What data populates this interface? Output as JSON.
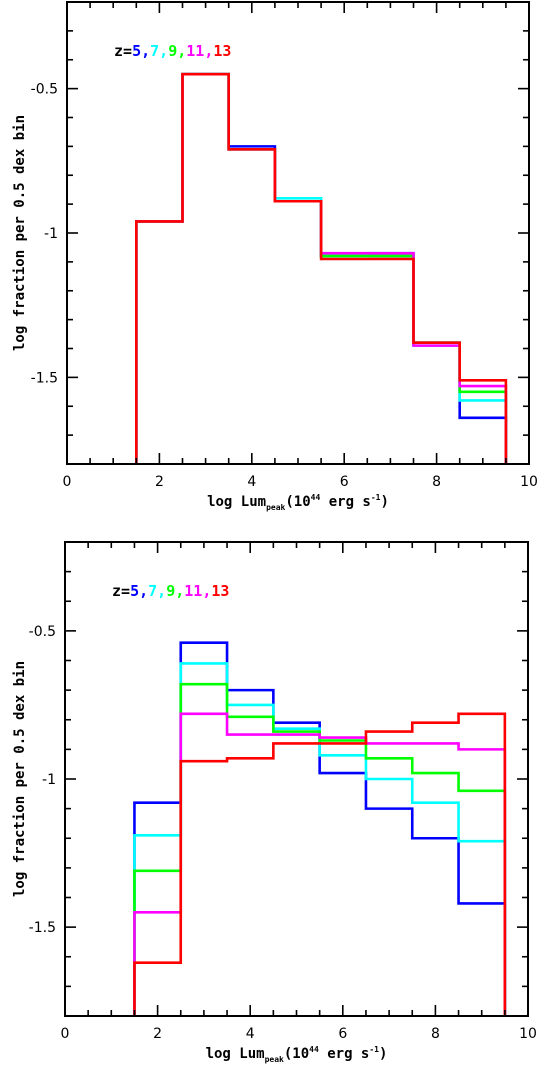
{
  "chart_data": [
    {
      "type": "line",
      "step": "histogram",
      "title": "",
      "xlabel_main": "log Lum",
      "xlabel_sub": "peak",
      "xlabel_paren": "(10",
      "xlabel_exp": "44",
      "xlabel_unit": " erg s",
      "xlabel_unit_exp": "-1",
      "xlabel_close": ")",
      "ylabel": "log fraction per 0.5 dex bin",
      "xlim": [
        0,
        10
      ],
      "ylim": [
        -1.8,
        -0.2
      ],
      "xticks": [
        0,
        2,
        4,
        6,
        8,
        10
      ],
      "xtick_labels": [
        "0",
        "2",
        "4",
        "6",
        "8",
        "10"
      ],
      "yticks": [
        -0.5,
        -1,
        -1.5
      ],
      "ytick_labels": [
        "-0.5",
        "-1",
        "-1.5"
      ],
      "legend_prefix": "z=",
      "legend": [
        "5",
        "7",
        "9",
        "11",
        "13"
      ],
      "legend_separators": [
        ",",
        ",",
        ",",
        ","
      ],
      "bin_edges": [
        1.5,
        2.5,
        3.5,
        4.5,
        5.5,
        6.5,
        7.5,
        8.5,
        9.5
      ],
      "series": [
        {
          "name": "5",
          "color": "#0000ff",
          "values": [
            -0.96,
            -0.45,
            -0.7,
            -0.89,
            -1.08,
            -1.08,
            -1.38,
            -1.64
          ]
        },
        {
          "name": "7",
          "color": "#00ffff",
          "values": [
            -0.96,
            -0.45,
            -0.71,
            -0.88,
            -1.08,
            -1.07,
            -1.39,
            -1.58
          ]
        },
        {
          "name": "9",
          "color": "#00ff00",
          "values": [
            -0.96,
            -0.45,
            -0.71,
            -0.89,
            -1.08,
            -1.08,
            -1.38,
            -1.55
          ]
        },
        {
          "name": "11",
          "color": "#ff00ff",
          "values": [
            -0.96,
            -0.45,
            -0.71,
            -0.89,
            -1.07,
            -1.07,
            -1.39,
            -1.53
          ]
        },
        {
          "name": "13",
          "color": "#ff0000",
          "values": [
            -0.96,
            -0.45,
            -0.71,
            -0.89,
            -1.09,
            -1.09,
            -1.38,
            -1.51
          ]
        }
      ]
    },
    {
      "type": "line",
      "step": "histogram",
      "title": "",
      "xlabel_main": "log Lum",
      "xlabel_sub": "peak",
      "xlabel_paren": "(10",
      "xlabel_exp": "44",
      "xlabel_unit": " erg s",
      "xlabel_unit_exp": "-1",
      "xlabel_close": ")",
      "ylabel": "log fraction per 0.5 dex bin",
      "xlim": [
        0,
        10
      ],
      "ylim": [
        -1.8,
        -0.2
      ],
      "xticks": [
        0,
        2,
        4,
        6,
        8,
        10
      ],
      "xtick_labels": [
        "0",
        "2",
        "4",
        "6",
        "8",
        "10"
      ],
      "yticks": [
        -0.5,
        -1,
        -1.5
      ],
      "ytick_labels": [
        "-0.5",
        "-1",
        "-1.5"
      ],
      "legend_prefix": "z=",
      "legend": [
        "5",
        "7",
        "9",
        "11",
        "13"
      ],
      "legend_separators": [
        ",",
        ",",
        ",",
        ","
      ],
      "bin_edges": [
        1.5,
        2.5,
        3.5,
        4.5,
        5.5,
        6.5,
        7.5,
        8.5,
        9.5
      ],
      "series": [
        {
          "name": "5",
          "color": "#0000ff",
          "values": [
            -1.08,
            -0.54,
            -0.7,
            -0.81,
            -0.98,
            -1.1,
            -1.2,
            -1.42
          ]
        },
        {
          "name": "7",
          "color": "#00ffff",
          "values": [
            -1.19,
            -0.61,
            -0.75,
            -0.83,
            -0.92,
            -1.0,
            -1.08,
            -1.21
          ]
        },
        {
          "name": "9",
          "color": "#00ff00",
          "values": [
            -1.31,
            -0.68,
            -0.79,
            -0.84,
            -0.87,
            -0.93,
            -0.98,
            -1.04
          ]
        },
        {
          "name": "11",
          "color": "#ff00ff",
          "values": [
            -1.45,
            -0.78,
            -0.85,
            -0.85,
            -0.86,
            -0.88,
            -0.88,
            -0.9
          ]
        },
        {
          "name": "13",
          "color": "#ff0000",
          "values": [
            -1.62,
            -0.94,
            -0.93,
            -0.88,
            -0.88,
            -0.84,
            -0.81,
            -0.78
          ]
        }
      ]
    }
  ]
}
